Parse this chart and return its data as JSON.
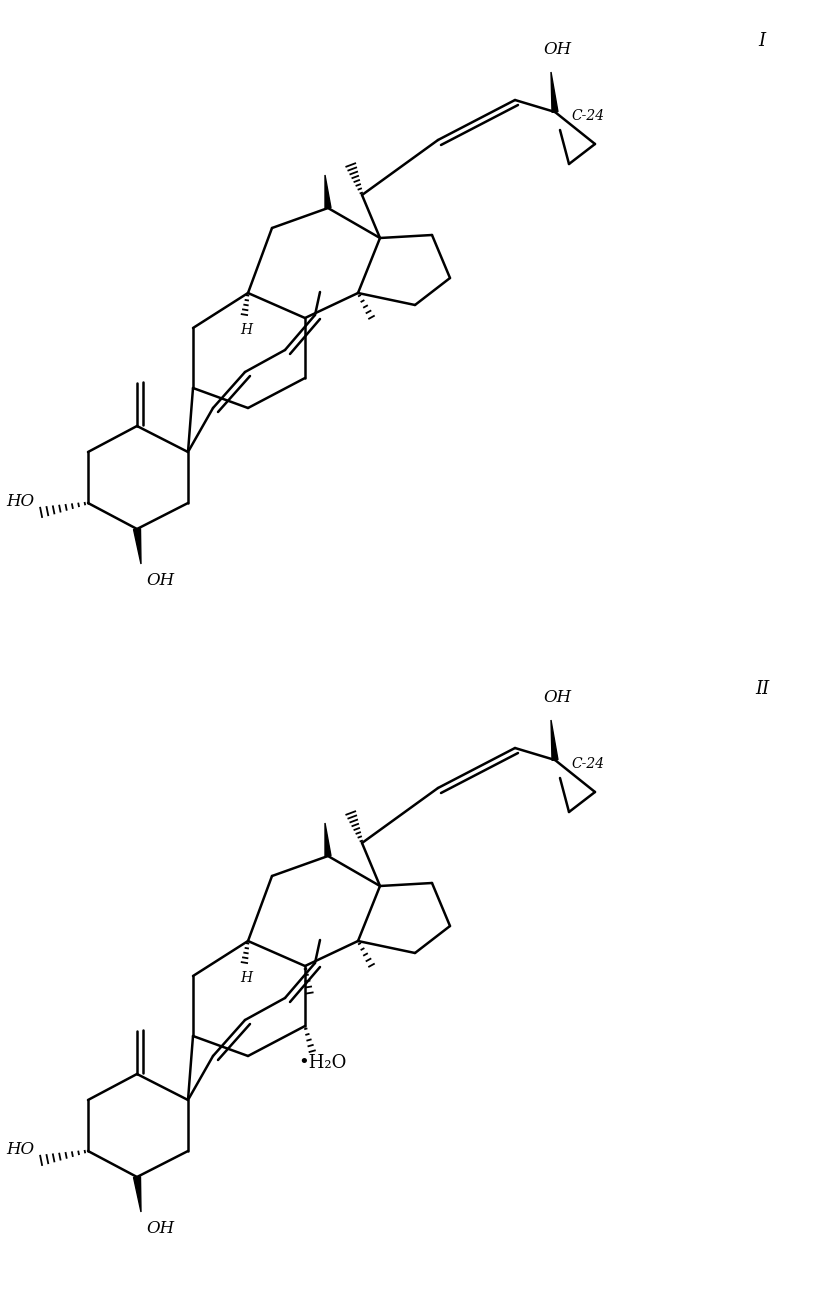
{
  "background_color": "#ffffff",
  "line_color": "#000000",
  "line_width": 1.8,
  "fig_width": 8.25,
  "fig_height": 12.95,
  "font_size_label": 12,
  "font_size_roman": 13,
  "font_size_small": 10,
  "label_I": "I",
  "label_II": "II",
  "label_OH": "OH",
  "label_HO": "HO",
  "label_H": "H",
  "label_C24": "C-24",
  "label_H2O": "•H₂O"
}
